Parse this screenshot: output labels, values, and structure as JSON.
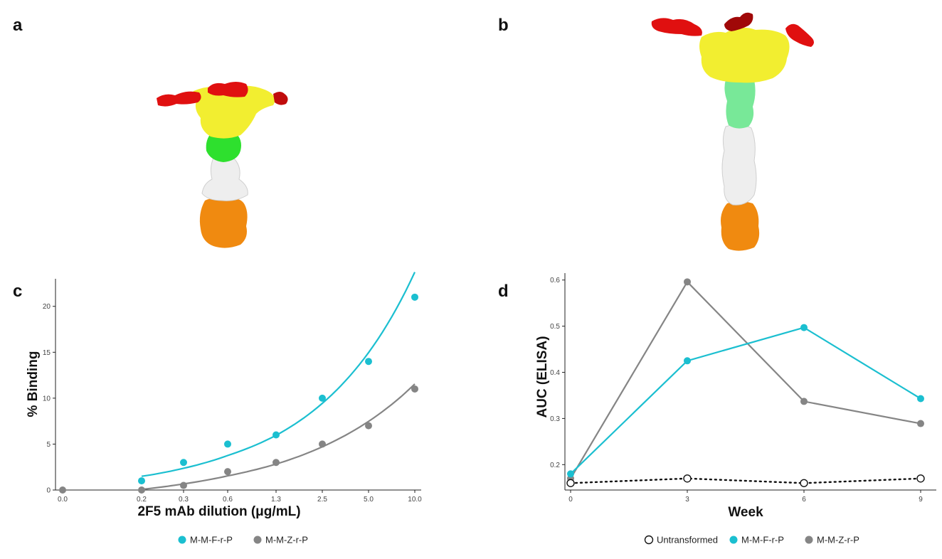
{
  "panels": {
    "a": "a",
    "b": "b",
    "c": "c",
    "d": "d"
  },
  "colors": {
    "cyan": "#1bbfd0",
    "grey": "#858585",
    "red": "#e01010",
    "darkred": "#a00808",
    "yellow": "#f2ee30",
    "green": "#2ee02e",
    "lightgreen": "#78e898",
    "white": "#eeeeee",
    "orange": "#f08a10"
  },
  "chart_data": [
    {
      "type": "scatter",
      "panel": "c",
      "title": "",
      "xlabel": "2F5 mAb dilution (μg/mL)",
      "ylabel": "% Binding",
      "categories": [
        "0.0",
        "0.2",
        "0.3",
        "0.6",
        "1.3",
        "2.5",
        "5.0",
        "10.0"
      ],
      "yticks": [
        0,
        5,
        10,
        15,
        20
      ],
      "ylim": [
        0,
        23
      ],
      "grid": false,
      "legend_position": "bottom",
      "series": [
        {
          "name": "M-M-F-r-P",
          "color": "#1bbfd0",
          "values": [
            null,
            1,
            3,
            5,
            6,
            10,
            14,
            21
          ],
          "fit": true
        },
        {
          "name": "M-M-Z-r-P",
          "color": "#858585",
          "values": [
            0,
            0,
            0.5,
            2,
            3,
            5,
            7,
            11
          ],
          "fit": true
        }
      ]
    },
    {
      "type": "line",
      "panel": "d",
      "title": "",
      "xlabel": "Week",
      "ylabel": "AUC (ELISA)",
      "x": [
        0,
        3,
        6,
        9
      ],
      "xticks": [
        "0",
        "3",
        "6",
        "9"
      ],
      "yticks": [
        "0.2",
        "0.3",
        "0.4",
        "0.5",
        "0.6"
      ],
      "ylim": [
        0.145,
        0.615
      ],
      "grid": false,
      "legend_position": "bottom",
      "series": [
        {
          "name": "Untransformed",
          "color": "#111111",
          "style": "dotted",
          "marker": "open-circle",
          "values": [
            0.16,
            0.17,
            0.16,
            0.17
          ]
        },
        {
          "name": "M-M-F-r-P",
          "color": "#1bbfd0",
          "style": "solid",
          "marker": "filled-circle",
          "values": [
            0.18,
            0.425,
            0.497,
            0.343
          ]
        },
        {
          "name": "M-M-Z-r-P",
          "color": "#858585",
          "style": "solid",
          "marker": "filled-circle",
          "values": [
            0.17,
            0.596,
            0.337,
            0.289
          ]
        }
      ]
    }
  ]
}
